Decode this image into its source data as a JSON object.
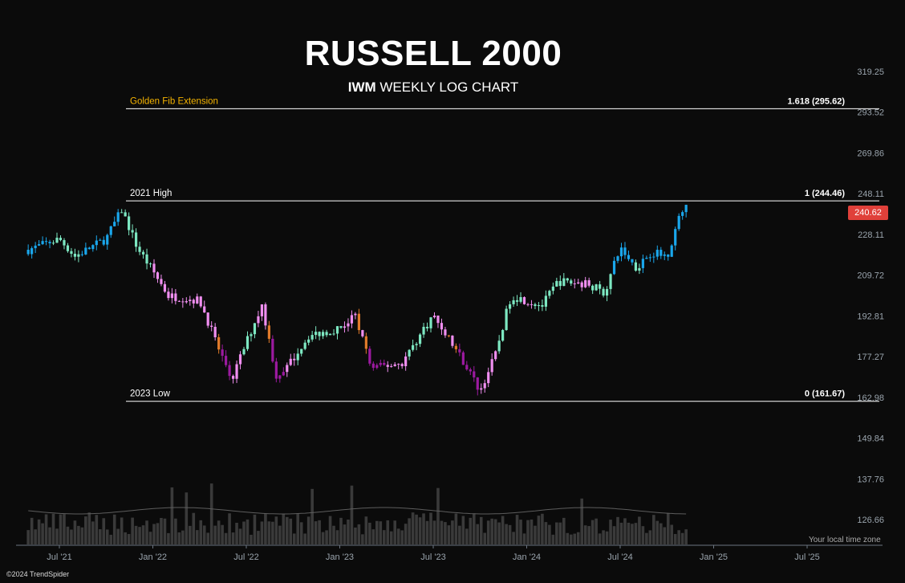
{
  "title": "RUSSELL 2000",
  "subtitle_ticker": "IWM",
  "subtitle_rest": " WEEKLY LOG CHART",
  "watermark": "©2024 TrendSpider",
  "timezone_note": "Your local time zone",
  "current_price": "240.62",
  "colors": {
    "background": "#0b0b0b",
    "axis_text": "#9aa4ad",
    "level_line": "#ffffff",
    "golden_label": "#f5b400",
    "badge": "#e0403a",
    "candle_blue": "#1aa7ec",
    "candle_mint": "#7de8c2",
    "candle_pink": "#f08ef0",
    "candle_purple": "#9c1aa0",
    "candle_orange": "#e07a2a",
    "volume": "#3a3a3a"
  },
  "chart_data": {
    "type": "candlestick",
    "scale": "log",
    "y_ticks": [
      319.25,
      293.52,
      269.86,
      248.11,
      228.11,
      209.72,
      192.81,
      177.27,
      162.98,
      149.84,
      137.76,
      126.66
    ],
    "x_ticks": [
      "Jul '21",
      "Jan '22",
      "Jul '22",
      "Jan '23",
      "Jul '23",
      "Jan '24",
      "Jul '24",
      "Jan '25",
      "Jul '25"
    ],
    "levels": [
      {
        "label": "Golden Fib Extension",
        "value_label": "1.618 (295.62)",
        "value": 295.62,
        "golden": true
      },
      {
        "label": "2021 High",
        "value_label": "1 (244.46)",
        "value": 244.46,
        "golden": false
      },
      {
        "label": "2023 Low",
        "value_label": "0 (161.67)",
        "value": 161.67,
        "golden": false
      }
    ],
    "approx_weekly_closes": [
      {
        "date": "2021-05",
        "close": 221
      },
      {
        "date": "2021-07",
        "close": 226
      },
      {
        "date": "2021-08",
        "close": 218
      },
      {
        "date": "2021-10",
        "close": 226
      },
      {
        "date": "2021-11",
        "close": 240
      },
      {
        "date": "2021-12",
        "close": 222
      },
      {
        "date": "2022-02",
        "close": 201
      },
      {
        "date": "2022-04",
        "close": 199
      },
      {
        "date": "2022-06",
        "close": 168
      },
      {
        "date": "2022-08",
        "close": 197
      },
      {
        "date": "2022-09",
        "close": 168
      },
      {
        "date": "2022-11",
        "close": 185
      },
      {
        "date": "2023-01",
        "close": 188
      },
      {
        "date": "2023-02",
        "close": 193
      },
      {
        "date": "2023-03",
        "close": 173
      },
      {
        "date": "2023-05",
        "close": 175
      },
      {
        "date": "2023-07",
        "close": 193
      },
      {
        "date": "2023-09",
        "close": 175
      },
      {
        "date": "2023-10",
        "close": 165
      },
      {
        "date": "2023-11",
        "close": 178
      },
      {
        "date": "2023-12",
        "close": 201
      },
      {
        "date": "2024-02",
        "close": 197
      },
      {
        "date": "2024-03",
        "close": 207
      },
      {
        "date": "2024-05",
        "close": 206
      },
      {
        "date": "2024-06",
        "close": 202
      },
      {
        "date": "2024-07",
        "close": 222
      },
      {
        "date": "2024-08",
        "close": 213
      },
      {
        "date": "2024-09",
        "close": 220
      },
      {
        "date": "2024-10",
        "close": 218
      },
      {
        "date": "2024-11",
        "close": 240.62
      }
    ]
  }
}
